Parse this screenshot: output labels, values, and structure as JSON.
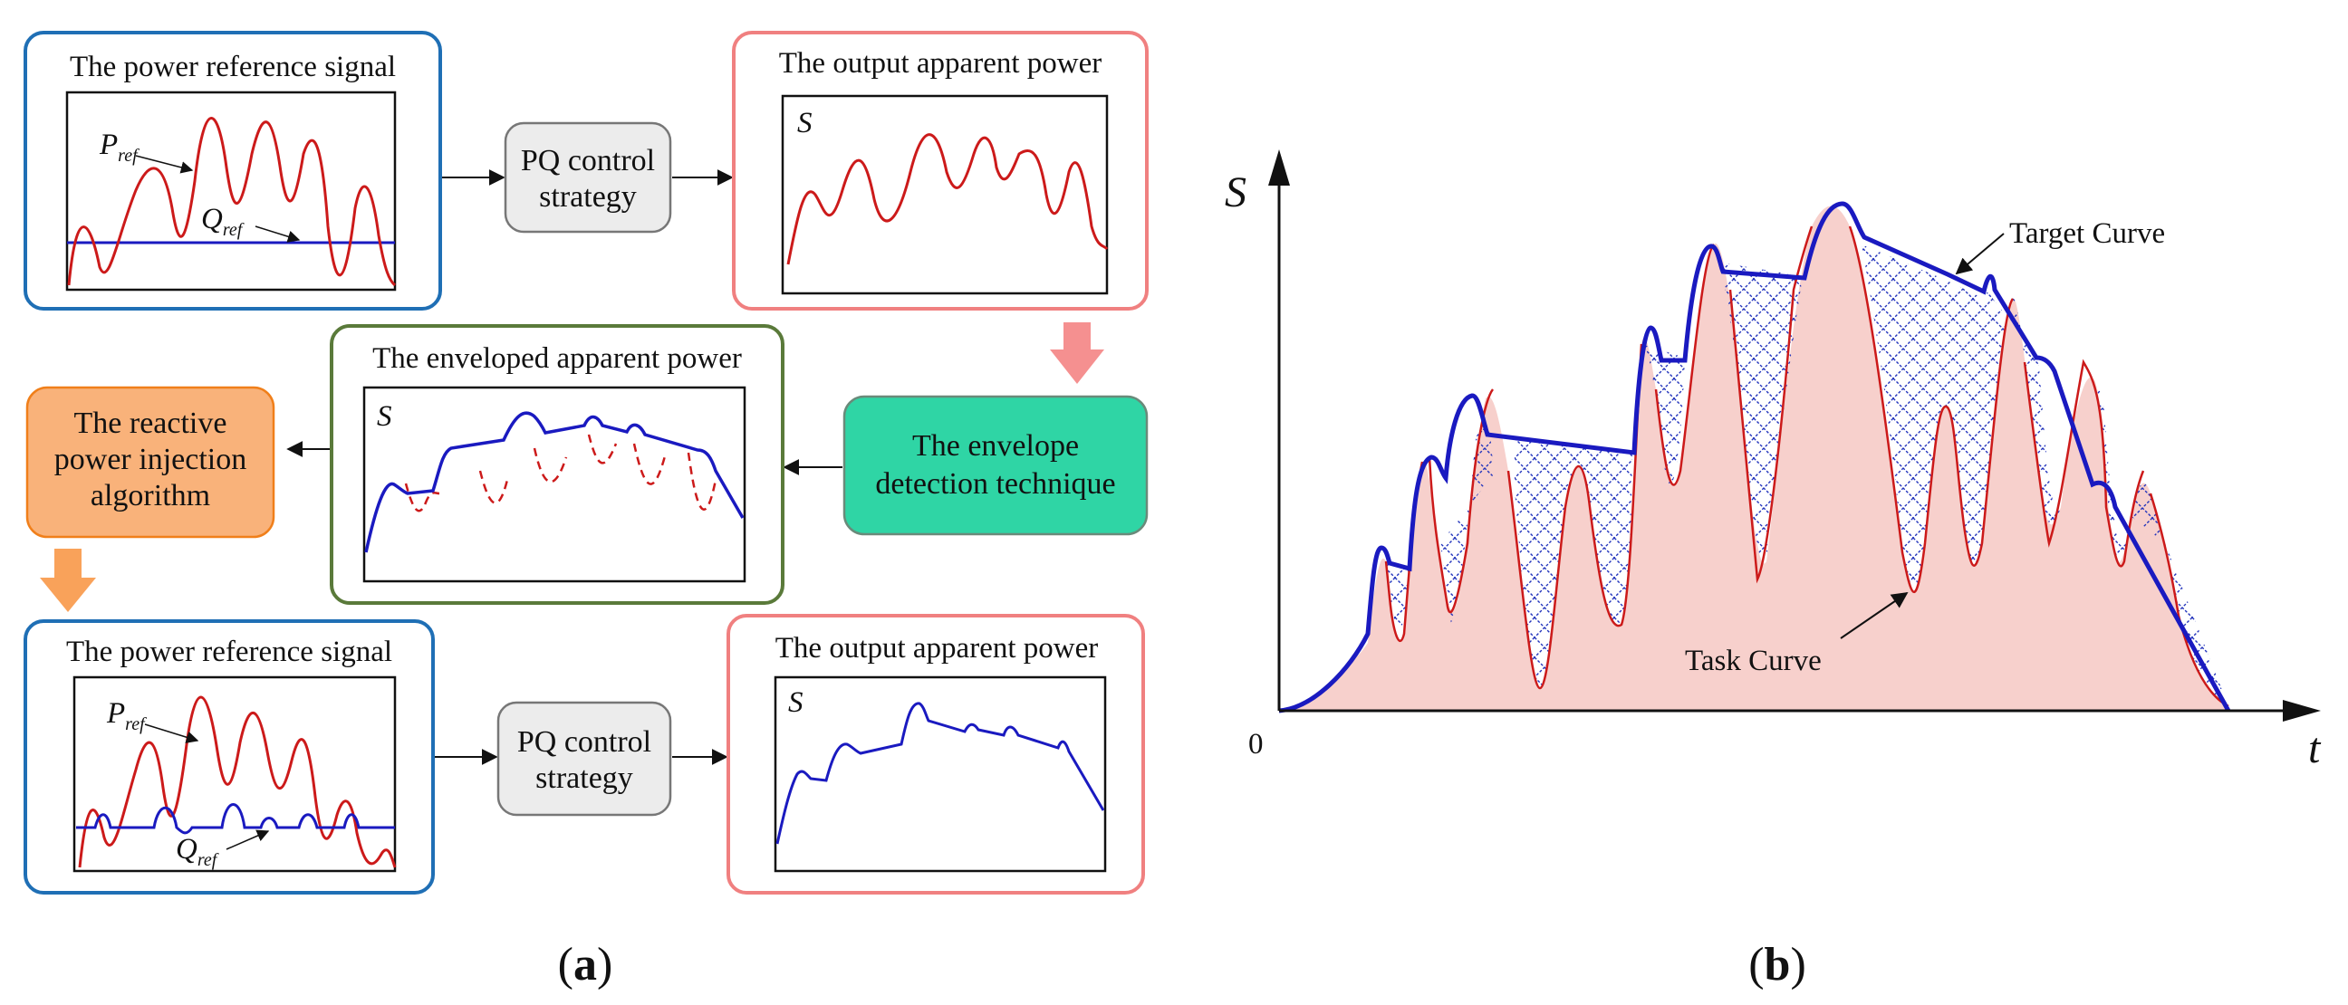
{
  "panel_a": {
    "label_open": "(",
    "label_letter": "a",
    "label_close": ")",
    "box1": {
      "title": "The power reference signal",
      "p_ref": "P",
      "p_sub": "ref",
      "q_ref": "Q",
      "q_sub": "ref"
    },
    "pq1": {
      "line1": "PQ control",
      "line2": "strategy"
    },
    "box2": {
      "title": "The output apparent power",
      "s": "S"
    },
    "envelope_detect": {
      "line1": "The envelope",
      "line2": "detection technique"
    },
    "box3": {
      "title": "The enveloped apparent power",
      "s": "S"
    },
    "reactive": {
      "line1": "The reactive",
      "line2": "power injection",
      "line3": "algorithm"
    },
    "box4": {
      "title": "The power reference signal",
      "p_ref": "P",
      "p_sub": "ref",
      "q_ref": "Q",
      "q_sub": "ref"
    },
    "pq2": {
      "line1": "PQ control",
      "line2": "strategy"
    },
    "box5": {
      "title": "The output apparent power",
      "s": "S"
    }
  },
  "panel_b": {
    "label_open": "(",
    "label_letter": "b",
    "label_close": ")",
    "y_axis": "S",
    "x_axis": "t",
    "origin": "0",
    "target_curve": "Target Curve",
    "task_curve": "Task Curve"
  },
  "colors": {
    "blue_box": "#1f6fb5",
    "red_box": "#f08080",
    "green_box": "#5a7a3a",
    "pq_fill": "#ececec",
    "envelope_fill": "#2fd5a5",
    "reactive_fill": "#f9b27a",
    "reactive_border": "#f07f1a",
    "curve_red": "#cc1a1a",
    "curve_blue": "#1a1ac0",
    "task_fill": "#f7d0cc"
  }
}
